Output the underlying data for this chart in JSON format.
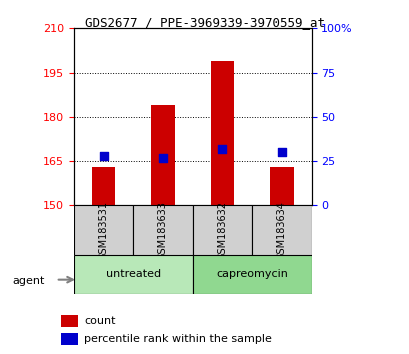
{
  "title": "GDS2677 / PPE-3969339-3970559_at",
  "samples": [
    "GSM183531",
    "GSM183633",
    "GSM183632",
    "GSM183634"
  ],
  "groups": [
    "untreated",
    "untreated",
    "capreomycin",
    "capreomycin"
  ],
  "group_labels": [
    "untreated",
    "capreomycin"
  ],
  "bar_values": [
    163,
    184,
    199,
    163
  ],
  "percentile_values": [
    28,
    27,
    32,
    30
  ],
  "ylim_left": [
    150,
    210
  ],
  "ylim_right": [
    0,
    100
  ],
  "yticks_left": [
    150,
    165,
    180,
    195,
    210
  ],
  "yticks_right": [
    0,
    25,
    50,
    75,
    100
  ],
  "bar_color": "#cc0000",
  "dot_color": "#0000cc",
  "bar_width": 0.4,
  "group_colors": [
    "#b0e0b0",
    "#90d890"
  ],
  "label_bg_color": "#d0d0d0",
  "legend_count_color": "#cc0000",
  "legend_pct_color": "#0000cc",
  "grid_color": "#000000",
  "xlabel_rotation": 90,
  "agent_label": "agent",
  "legend_count": "count",
  "legend_pct": "percentile rank within the sample",
  "pct_scale_factor": 0.6
}
